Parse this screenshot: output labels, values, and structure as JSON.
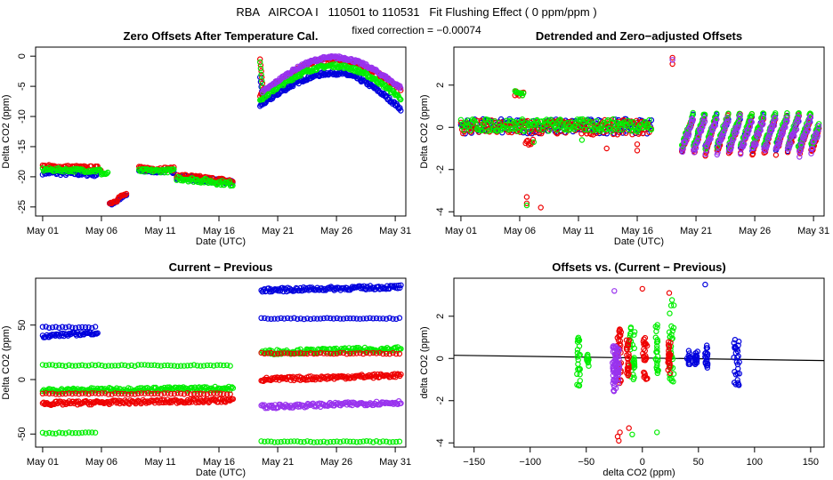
{
  "header": {
    "title": "RBA   AIRCOA I   110501 to 110531   Fit Flushing Effect ( 0 ppm/ppm )",
    "subtitle": "fixed correction = −0.00074"
  },
  "colors": {
    "blue": "#0000dd",
    "red": "#ee0000",
    "green": "#00ee00",
    "purple": "#9933ee",
    "axis": "#000000"
  },
  "chart_data": [
    {
      "id": "p1",
      "type": "scatter",
      "title": "Zero Offsets After Temperature Cal.",
      "xlabel": "Date (UTC)",
      "ylabel": "Delta CO2 (ppm)",
      "xlim": [
        0.4,
        31.9
      ],
      "ylim": [
        -26.5,
        1.5
      ],
      "xticks": [
        1,
        6,
        11,
        16,
        21,
        26,
        31
      ],
      "xticklabels": [
        "May 01",
        "May 06",
        "May 11",
        "May 16",
        "May 21",
        "May 26",
        "May 31"
      ],
      "yticks": [
        0,
        -5,
        -10,
        -15,
        -20,
        -25
      ],
      "yticklabels": [
        "0",
        "-5",
        "-10",
        "-15",
        "-20",
        "-25"
      ],
      "series": [
        {
          "name": "blue",
          "color": "blue",
          "segments": [
            {
              "kind": "line",
              "x0": 1.0,
              "x1": 5.7,
              "y0": -19.3,
              "y1": -19.6,
              "jitter": 0.35
            },
            {
              "kind": "line",
              "x0": 6.7,
              "x1": 7.4,
              "y0": -24.6,
              "y1": -24.0,
              "jitter": 0.25
            },
            {
              "kind": "line",
              "x0": 7.4,
              "x1": 8.2,
              "y0": -23.8,
              "y1": -23.0,
              "jitter": 0.25
            },
            {
              "kind": "line",
              "x0": 9.2,
              "x1": 12.2,
              "y0": -19.0,
              "y1": -19.1,
              "jitter": 0.3
            },
            {
              "kind": "line",
              "x0": 12.4,
              "x1": 17.2,
              "y0": -20.0,
              "y1": -21.0,
              "jitter": 0.4
            },
            {
              "kind": "curve",
              "x0": 19.5,
              "x1": 31.5,
              "ym": -2.8,
              "ya": -8.2,
              "yb": -8.8,
              "xm": 25.8,
              "jitter": 0.3,
              "spike": [
                19.5,
                -3.5
              ]
            }
          ]
        },
        {
          "name": "red",
          "color": "red",
          "segments": [
            {
              "kind": "line",
              "x0": 1.0,
              "x1": 6.0,
              "y0": -18.3,
              "y1": -18.6,
              "jitter": 0.35
            },
            {
              "kind": "line",
              "x0": 6.7,
              "x1": 7.4,
              "y0": -24.4,
              "y1": -23.8,
              "jitter": 0.25
            },
            {
              "kind": "line",
              "x0": 7.4,
              "x1": 8.2,
              "y0": -23.5,
              "y1": -22.8,
              "jitter": 0.25
            },
            {
              "kind": "line",
              "x0": 9.2,
              "x1": 12.2,
              "y0": -18.6,
              "y1": -18.7,
              "jitter": 0.3
            },
            {
              "kind": "line",
              "x0": 12.4,
              "x1": 17.2,
              "y0": -19.8,
              "y1": -20.8,
              "jitter": 0.4
            },
            {
              "kind": "curve",
              "x0": 19.5,
              "x1": 31.5,
              "ym": -0.5,
              "ya": -6.5,
              "yb": -5.5,
              "xm": 25.8,
              "jitter": 0.3,
              "spike": [
                19.5,
                -0.5
              ]
            }
          ]
        },
        {
          "name": "green",
          "color": "green",
          "segments": [
            {
              "kind": "line",
              "x0": 1.0,
              "x1": 6.0,
              "y0": -18.8,
              "y1": -19.0,
              "jitter": 0.3
            },
            {
              "kind": "line",
              "x0": 6.0,
              "x1": 6.6,
              "y0": -19.5,
              "y1": -19.5,
              "jitter": 0.3
            },
            {
              "kind": "line",
              "x0": 9.2,
              "x1": 12.2,
              "y0": -19.0,
              "y1": -19.0,
              "jitter": 0.3
            },
            {
              "kind": "line",
              "x0": 12.4,
              "x1": 17.2,
              "y0": -20.2,
              "y1": -21.2,
              "jitter": 0.4
            },
            {
              "kind": "curve",
              "x0": 19.5,
              "x1": 31.5,
              "ym": -1.6,
              "ya": -7.2,
              "yb": -7.0,
              "xm": 25.8,
              "jitter": 0.3,
              "spike": [
                19.5,
                -1.0
              ]
            }
          ]
        },
        {
          "name": "purple",
          "color": "purple",
          "segments": [
            {
              "kind": "curve",
              "x0": 19.7,
              "x1": 31.5,
              "ym": -0.2,
              "ya": -6.0,
              "yb": -5.3,
              "xm": 25.8,
              "jitter": 0.25
            }
          ]
        }
      ]
    },
    {
      "id": "p2",
      "type": "scatter",
      "title": "Detrended and Zero−adjusted Offsets",
      "xlabel": "Date (UTC)",
      "ylabel": "Delta CO2 (ppm)",
      "xlim": [
        0.4,
        31.9
      ],
      "ylim": [
        -4.2,
        3.8
      ],
      "xticks": [
        1,
        6,
        11,
        16,
        21,
        26,
        31
      ],
      "xticklabels": [
        "May 01",
        "May 06",
        "May 11",
        "May 16",
        "May 21",
        "May 26",
        "May 31"
      ],
      "yticks": [
        2,
        0,
        -2,
        -4
      ],
      "yticklabels": [
        "2",
        "0",
        "-2",
        "-4"
      ],
      "series": [
        {
          "name": "blue",
          "color": "blue",
          "segments": [
            {
              "kind": "line",
              "x0": 1.0,
              "x1": 17.2,
              "y0": 0.05,
              "y1": 0.05,
              "jitter": 0.35
            },
            {
              "kind": "saw",
              "x0": 19.8,
              "x1": 31.5,
              "period": 1.0,
              "lo": -1.0,
              "hi": 0.55,
              "jitter": 0.15
            }
          ]
        },
        {
          "name": "red",
          "color": "red",
          "segments": [
            {
              "kind": "line",
              "x0": 1.0,
              "x1": 17.2,
              "y0": 0.0,
              "y1": 0.0,
              "jitter": 0.35
            },
            {
              "kind": "line",
              "x0": 5.6,
              "x1": 6.4,
              "y0": 1.6,
              "y1": 1.6,
              "jitter": 0.12
            },
            {
              "kind": "line",
              "x0": 6.5,
              "x1": 7.2,
              "y0": -0.7,
              "y1": -0.7,
              "jitter": 0.15
            },
            {
              "kind": "saw",
              "x0": 19.8,
              "x1": 31.5,
              "period": 1.0,
              "lo": -1.2,
              "hi": 0.6,
              "jitter": 0.15
            },
            {
              "kind": "points",
              "pts": [
                [
                  6.6,
                  -3.3
                ],
                [
                  6.6,
                  -3.6
                ],
                [
                  7.8,
                  -3.8
                ],
                [
                  19.0,
                  3.3
                ],
                [
                  19.0,
                  3.0
                ],
                [
                  13.4,
                  -1.0
                ],
                [
                  16.0,
                  -0.8
                ],
                [
                  16.0,
                  -1.1
                ],
                [
                  29.8,
                  -1.0
                ]
              ]
            }
          ]
        },
        {
          "name": "green",
          "color": "green",
          "segments": [
            {
              "kind": "line",
              "x0": 1.0,
              "x1": 17.2,
              "y0": 0.1,
              "y1": 0.1,
              "jitter": 0.3
            },
            {
              "kind": "line",
              "x0": 5.6,
              "x1": 6.4,
              "y0": 1.65,
              "y1": 1.6,
              "jitter": 0.1
            },
            {
              "kind": "saw",
              "x0": 19.8,
              "x1": 31.5,
              "period": 1.0,
              "lo": -0.9,
              "hi": 0.7,
              "jitter": 0.15
            },
            {
              "kind": "points",
              "pts": [
                [
                  7.2,
                  -0.7
                ],
                [
                  6.6,
                  -3.7
                ],
                [
                  11.3,
                  -0.6
                ],
                [
                  29.7,
                  -0.9
                ]
              ]
            }
          ]
        },
        {
          "name": "purple",
          "color": "purple",
          "segments": [
            {
              "kind": "saw",
              "x0": 19.8,
              "x1": 31.5,
              "period": 1.0,
              "lo": -1.1,
              "hi": 0.5,
              "jitter": 0.2
            },
            {
              "kind": "points",
              "pts": [
                [
                  19.0,
                  3.2
                ],
                [
                  29.8,
                  -1.4
                ]
              ]
            }
          ]
        }
      ]
    },
    {
      "id": "p3",
      "type": "scatter",
      "title": "Current − Previous",
      "xlabel": "Date (UTC)",
      "ylabel": "Delta CO2 (ppm)",
      "xlim": [
        0.4,
        31.9
      ],
      "ylim": [
        -62,
        93
      ],
      "xticks": [
        1,
        6,
        11,
        16,
        21,
        26,
        31
      ],
      "xticklabels": [
        "May 01",
        "May 06",
        "May 11",
        "May 16",
        "May 21",
        "May 26",
        "May 31"
      ],
      "yticks": [
        50,
        0,
        -50
      ],
      "yticklabels": [
        "50",
        "0",
        "-50"
      ],
      "series": [
        {
          "name": "blue",
          "color": "blue",
          "segments": [
            {
              "kind": "line",
              "x0": 1.0,
              "x1": 5.7,
              "y0": 48,
              "y1": 48,
              "jitter": 0.6,
              "step": 0.28
            },
            {
              "kind": "line",
              "x0": 1.0,
              "x1": 5.7,
              "y0": 40,
              "y1": 43,
              "jitter": 1.5
            },
            {
              "kind": "line",
              "x0": 19.6,
              "x1": 31.5,
              "y0": 56,
              "y1": 56,
              "jitter": 0.6,
              "step": 0.28
            },
            {
              "kind": "line",
              "x0": 19.6,
              "x1": 31.5,
              "y0": 82,
              "y1": 85,
              "jitter": 1.8
            }
          ]
        },
        {
          "name": "green",
          "color": "green",
          "segments": [
            {
              "kind": "line",
              "x0": 1.0,
              "x1": 17.2,
              "y0": 13,
              "y1": 13,
              "jitter": 0.6,
              "step": 0.28
            },
            {
              "kind": "line",
              "x0": 1.0,
              "x1": 5.7,
              "y0": -49,
              "y1": -49,
              "jitter": 0.6,
              "step": 0.28
            },
            {
              "kind": "line",
              "x0": 1.0,
              "x1": 17.2,
              "y0": -10,
              "y1": -8,
              "jitter": 1.8
            },
            {
              "kind": "line",
              "x0": 19.6,
              "x1": 31.5,
              "y0": -57,
              "y1": -57,
              "jitter": 0.6,
              "step": 0.28
            },
            {
              "kind": "line",
              "x0": 19.6,
              "x1": 31.5,
              "y0": 25,
              "y1": 28,
              "jitter": 2.2
            }
          ]
        },
        {
          "name": "red",
          "color": "red",
          "segments": [
            {
              "kind": "line",
              "x0": 1.0,
              "x1": 17.2,
              "y0": -13,
              "y1": -13,
              "jitter": 0.6,
              "step": 0.28
            },
            {
              "kind": "line",
              "x0": 1.0,
              "x1": 17.2,
              "y0": -22,
              "y1": -19,
              "jitter": 1.8
            },
            {
              "kind": "line",
              "x0": 19.6,
              "x1": 31.5,
              "y0": 24,
              "y1": 24,
              "jitter": 0.6,
              "step": 0.28
            },
            {
              "kind": "line",
              "x0": 19.6,
              "x1": 31.5,
              "y0": 0,
              "y1": 4,
              "jitter": 1.8
            }
          ]
        },
        {
          "name": "purple",
          "color": "purple",
          "segments": [
            {
              "kind": "line",
              "x0": 19.6,
              "x1": 31.5,
              "y0": -25,
              "y1": -21,
              "jitter": 1.8
            }
          ]
        }
      ]
    },
    {
      "id": "p4",
      "type": "scatter",
      "title": "Offsets vs. (Current − Previous)",
      "xlabel": "delta CO2 (ppm)",
      "ylabel": "delta CO2 (ppm)",
      "xlim": [
        -168,
        162
      ],
      "ylim": [
        -4.2,
        3.8
      ],
      "xticks": [
        -150,
        -100,
        -50,
        0,
        50,
        100,
        150
      ],
      "xticklabels": [
        "−150",
        "−100",
        "−50",
        "0",
        "50",
        "100",
        "150"
      ],
      "yticks": [
        2,
        0,
        -2,
        -4
      ],
      "yticklabels": [
        "2",
        "0",
        "-2",
        "-4"
      ],
      "fit_line": {
        "x": [
          -168,
          162
        ],
        "y": [
          0.15,
          -0.1
        ]
      },
      "series": [
        {
          "name": "green",
          "color": "green",
          "segments": [
            {
              "kind": "column",
              "x": -57,
              "lo": -1.3,
              "hi": 1.0,
              "n": 26,
              "xj": 1.5
            },
            {
              "kind": "column",
              "x": -49,
              "lo": -0.5,
              "hi": 0.3,
              "n": 12,
              "xj": 1.2
            },
            {
              "kind": "column",
              "x": -9,
              "lo": -1.1,
              "hi": 1.7,
              "n": 34,
              "xj": 2.2
            },
            {
              "kind": "column",
              "x": 13,
              "lo": -0.7,
              "hi": 1.6,
              "n": 24,
              "xj": 1.2
            },
            {
              "kind": "column",
              "x": 26,
              "lo": -1.1,
              "hi": 3.1,
              "n": 30,
              "xj": 2.2
            },
            {
              "kind": "points",
              "pts": [
                [
                  -9,
                  -3.6
                ],
                [
                  13,
                  -3.5
                ]
              ]
            }
          ]
        },
        {
          "name": "red",
          "color": "red",
          "segments": [
            {
              "kind": "column",
              "x": -21,
              "lo": -1.2,
              "hi": 1.6,
              "n": 34,
              "xj": 2.2
            },
            {
              "kind": "column",
              "x": -13,
              "lo": -0.9,
              "hi": 0.9,
              "n": 26,
              "xj": 1.2
            },
            {
              "kind": "column",
              "x": 2,
              "lo": -1.0,
              "hi": 1.0,
              "n": 28,
              "xj": 2.5
            },
            {
              "kind": "column",
              "x": 24,
              "lo": -0.8,
              "hi": 0.8,
              "n": 24,
              "xj": 1.2
            },
            {
              "kind": "points",
              "pts": [
                [
                  -22,
                  -3.7
                ],
                [
                  -21,
                  -3.9
                ],
                [
                  -20,
                  -3.5
                ],
                [
                  -12,
                  -3.3
                ],
                [
                  0,
                  3.3
                ],
                [
                  24,
                  3.1
                ]
              ]
            }
          ]
        },
        {
          "name": "blue",
          "color": "blue",
          "segments": [
            {
              "kind": "column",
              "x": 41,
              "lo": -0.3,
              "hi": 0.4,
              "n": 14,
              "xj": 1.5
            },
            {
              "kind": "column",
              "x": 48,
              "lo": -0.4,
              "hi": 0.4,
              "n": 16,
              "xj": 1.2
            },
            {
              "kind": "column",
              "x": 57,
              "lo": -0.5,
              "hi": 0.7,
              "n": 18,
              "xj": 1.2
            },
            {
              "kind": "column",
              "x": 84,
              "lo": -1.3,
              "hi": 0.9,
              "n": 30,
              "xj": 2.5
            },
            {
              "kind": "points",
              "pts": [
                [
                  56,
                  3.5
                ]
              ]
            }
          ]
        },
        {
          "name": "purple",
          "color": "purple",
          "segments": [
            {
              "kind": "column",
              "x": -25,
              "lo": -1.6,
              "hi": 0.6,
              "n": 38,
              "xj": 1.6
            },
            {
              "kind": "column",
              "x": -22,
              "lo": -1.2,
              "hi": 0.5,
              "n": 30,
              "xj": 1.6
            },
            {
              "kind": "points",
              "pts": [
                [
                  -25,
                  3.2
                ]
              ]
            }
          ]
        }
      ]
    }
  ]
}
